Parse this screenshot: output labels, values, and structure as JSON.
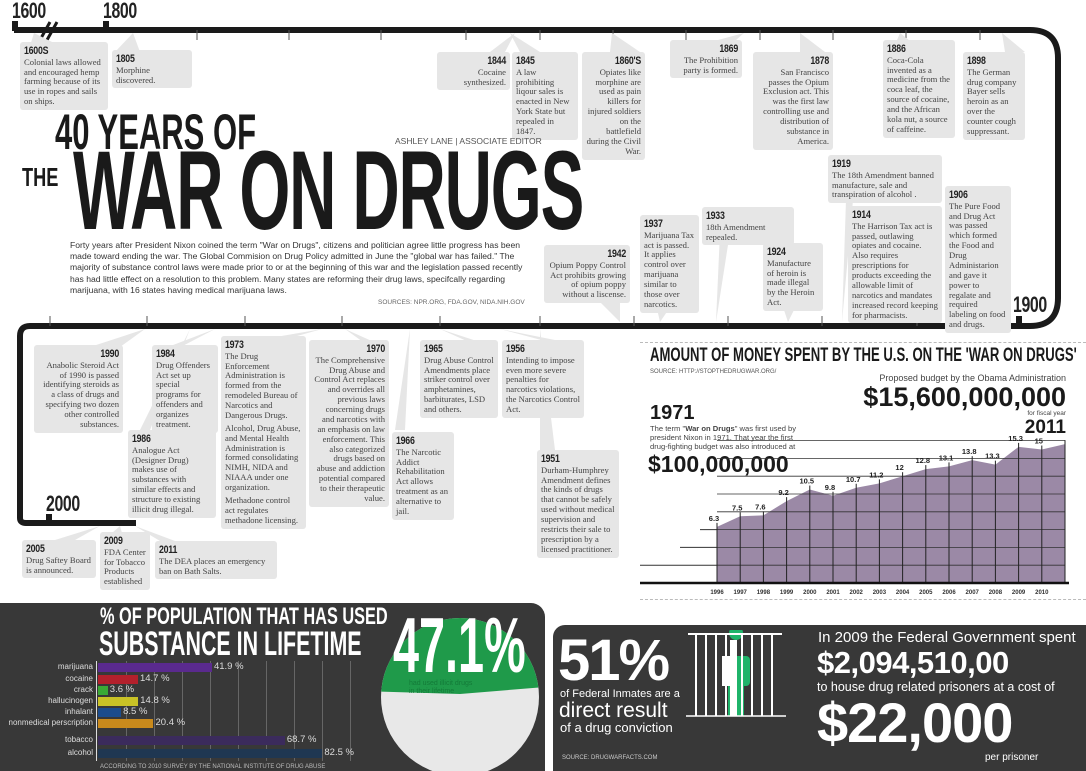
{
  "timeline": {
    "markers": [
      "1600",
      "1800",
      "1900",
      "2000"
    ],
    "events": [
      {
        "year": "1600S",
        "text": "Colonial laws allowed and encouraged hemp farming because of its use in ropes and sails on ships."
      },
      {
        "year": "1805",
        "text": "Morphine discovered."
      },
      {
        "year": "1844",
        "text": "Cocaine synthesized."
      },
      {
        "year": "1845",
        "text": "A law prohibiting liqour sales is enacted in New York State but repealed in 1847."
      },
      {
        "year": "1860'S",
        "text": "Opiates like morphine are used as pain killers for injured soldiers on the battlefield during the Civil War."
      },
      {
        "year": "1869",
        "text": "The Prohibition party is formed."
      },
      {
        "year": "1878",
        "text": "San Francisco passes the Opium Exclusion act. This was the first law controlling use and distribution of substance in America."
      },
      {
        "year": "1886",
        "text": "Coca-Cola invented as a medicine from the coca leaf, the source of cocaine, and the African kola nut, a source of caffeine."
      },
      {
        "year": "1898",
        "text": "The German drug company Bayer sells heroin as an over the counter cough suppressant."
      },
      {
        "year": "1919",
        "text": "The 18th Amendment banned manufacture, sale and transpiration of alcohol ."
      },
      {
        "year": "1914",
        "text": "The Harrison Tax act is passed, outlawing opiates and cocaine. Also requires prescriptions for products exceeding the allowable limit of narcotics and mandates increased record keeping for pharmacists."
      },
      {
        "year": "1906",
        "text": "The Pure Food and Drug Act was passed which formed the Food and Drug Administarion and gave it power to regalate and required labeling on food and drugs."
      },
      {
        "year": "1933",
        "text": "18th Amendment repealed."
      },
      {
        "year": "1937",
        "text": "Marijuana Tax act is passed. It applies control over marijuana similar to those over narcotics."
      },
      {
        "year": "1924",
        "text": "Manufacture of heroin is made illegal by the Heroin Act."
      },
      {
        "year": "1942",
        "text": "Opium Poppy Control Act prohibits growing of opium poppy without a liscense."
      },
      {
        "year": "1990",
        "text": "Anabolic Steroid Act of 1990 is passed identifying steroids as a class of drugs and specifying two dozen other controlled substances."
      },
      {
        "year": "1984",
        "text": "Drug Offenders Act set up special programs for offenders and organizes treatment."
      },
      {
        "year": "1986",
        "text": "Analogue Act (Designer Drug) makes use of substances with similar effects and structure to existing illicit drug illegal."
      },
      {
        "year": "1973",
        "text": "The Drug Enforcement Administration is formed from the remodeled Bureau of Narcotics and Dangerous Drugs.",
        "text2": "Alcohol, Drug Abuse, and Mental Health Administration is formed consolidating NIMH, NIDA and NIAAA under one organization.",
        "text3": "Methadone control act regulates methadone licensing."
      },
      {
        "year": "1970",
        "text": "The Comprehensive Drug Abuse and Control Act replaces and overrides all previous laws concerning drugs and narcotics with an emphasis on law enforcement. This also categorized drugs based on abuse and addiction potential compared to their therapeutic value."
      },
      {
        "year": "1966",
        "text": "The Narcotic Addict Rehabilitation Act allows treatment as an alternative to jail."
      },
      {
        "year": "1965",
        "text": "Drug Abuse Control Amendments place striker control over amphetamines, barbiturates, LSD and others."
      },
      {
        "year": "1956",
        "text": "Intending to impose even more severe penalties for narcotics violations, the Narcotics Control Act."
      },
      {
        "year": "1951",
        "text": "Durham-Humphrey Amendment defines the kinds of drugs that cannot be safely used without medical supervision and restricts their sale to prescription by a licensed practitioner."
      },
      {
        "year": "2005",
        "text": "Drug Saftey Board is announced."
      },
      {
        "year": "2009",
        "text": "FDA Center for Tobacco Products established"
      },
      {
        "year": "2011",
        "text": "The DEA places an emergency ban on Bath Salts."
      }
    ]
  },
  "header": {
    "title_line1": "40 YEARS OF",
    "title_the": "THE",
    "title_main": "WAR ON DRUGS",
    "byline": "ASHLEY LANE | ASSOCIATE EDITOR",
    "intro": "Forty years after President Nixon coined the term \"War on Drugs\",  citizens and politician  agree little progress has been made toward ending the war. The Global Commision on Drug Policy admitted in June the \"global war has failed.\" The majority of substance control laws were made prior to or at the beginning of this war and the legislation passed recently has had little effect on  a resolution to this problem. Many states are reforming their drug laws, specifcally regarding marijuana, with 16 states having medical marijuana laws.",
    "sources": "SOURCES: NPR.ORG, FDA.GOV, NIDA.NIH.GOV"
  },
  "money": {
    "title": "AMOUNT OF MONEY SPENT BY THE U.S. ON THE 'WAR ON DRUGS'",
    "source": "SOURCE: HTTP://STOPTHEDRUGWAR.ORG/",
    "proposed_label": "Proposed budget  by the Obama Administration",
    "proposed_amount": "$15,600,000,000",
    "fiscal_label": "for fiscal year",
    "fiscal_year": "2011",
    "y1971": "1971",
    "y1971_text_pre": "The term \"",
    "y1971_text_bold": "War on Drugs",
    "y1971_text_post": "\" was first used by president Nixon in 1971. That year the first drug-fighting budget was also introduced at",
    "y1971_amount": "$100,000,000"
  },
  "chart_data": [
    {
      "type": "area",
      "title": "AMOUNT OF MONEY SPENT BY THE U.S. ON THE 'WAR ON DRUGS'",
      "x": [
        "1996",
        "1997",
        "1998",
        "1999",
        "2000",
        "2001",
        "2002",
        "2003",
        "2004",
        "2005",
        "2006",
        "2007",
        "2008",
        "2009",
        "2010",
        "2011"
      ],
      "values": [
        6.3,
        7.5,
        7.6,
        9.2,
        10.5,
        9.8,
        10.7,
        11.2,
        12,
        12.8,
        13.1,
        13.8,
        13.3,
        15.3,
        15,
        15.6
      ],
      "labels": [
        "6.3",
        "7.5",
        "7.6",
        "9.2",
        "10.5",
        "9.8",
        "10.7",
        "11.2",
        "12",
        "12.8",
        "13.1",
        "13.8",
        "13.3",
        "15.3",
        "15",
        ""
      ],
      "tick_labels": [
        "1996",
        "1997",
        "1998",
        "1999",
        "2000",
        "2001",
        "2002",
        "2003",
        "2004",
        "2005",
        "2006",
        "2007",
        "2008",
        "2009",
        "2010"
      ],
      "ylim": [
        0,
        16
      ],
      "grid": true,
      "color": "#9b89a6"
    },
    {
      "type": "bar",
      "orientation": "horizontal",
      "title": "% OF POPULATION  THAT HAS USED SUBSTANCE IN LIFETIME",
      "categories": [
        "marijuana",
        "cocaine",
        "crack",
        "hallucinogen",
        "inhalant",
        "nonmedical perscription",
        "tobacco",
        "alcohol"
      ],
      "values": [
        41.9,
        14.7,
        3.6,
        14.8,
        8.5,
        20.4,
        68.7,
        82.5
      ],
      "labels": [
        "41.9 %",
        "14.7 %",
        "3.6 %",
        "14.8 %",
        "8.5 %",
        "20.4 %",
        "68.7 %",
        "82.5 %"
      ],
      "colors": [
        "#5a2a8e",
        "#b3202c",
        "#3aa935",
        "#c9c226",
        "#1c4c8c",
        "#c98a1c",
        "#3b2b5c",
        "#1f3752"
      ],
      "xlim": [
        0,
        100
      ],
      "grid": true,
      "footnote": "ACCORDING TO 2010 SURVEY BY THE NATIONAL INSTITUTE OF DRUG ABUSE"
    },
    {
      "type": "pie",
      "value_label": "47.1%",
      "caption": "had used illicit drugs in their lifetime",
      "values": [
        47.1,
        52.9
      ],
      "colors": [
        "#1f9a4a",
        "#e8e8e8"
      ]
    }
  ],
  "usage": {
    "title1": "% OF POPULATION  THAT HAS USED",
    "title2": "SUBSTANCE IN LIFETIME"
  },
  "prison": {
    "percent": "51%",
    "line1": "of Federal Inmates are a",
    "line2": "direct result",
    "line3": "of a drug conviction",
    "source": "SOURCE: DRUGWARFACTS.COM",
    "spent_intro": "In 2009 the Federal Government spent",
    "spent_amount": "$2,094,510,00",
    "house_text": "to house drug related prisoners at a cost of",
    "cost": "$22,000",
    "per": "per prisoner",
    "figure_color": "#1fb46a",
    "icon": "prisoner-behind-bars-icon"
  }
}
